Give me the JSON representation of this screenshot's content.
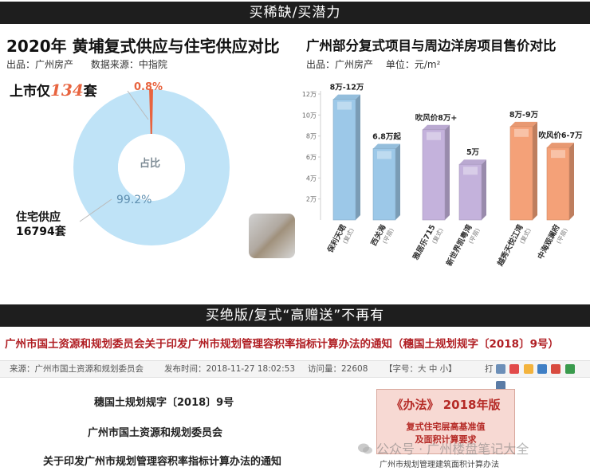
{
  "banners": {
    "top": "买稀缺/买潜力",
    "middle": "买绝版/复式“高赠送”不再有"
  },
  "left_panel": {
    "title": "2020年 黄埔复式供应与住宅供应对比",
    "source_out": "出品：广州房产",
    "source_data": "数据来源：中指院",
    "listed_prefix": "上市仅",
    "listed_count": "134",
    "listed_suffix": "套",
    "small_pct": "0.8%",
    "center_label": "占比",
    "big_pct": "99.2%",
    "residential_label": "住宅供应",
    "residential_count": "16794套",
    "colors": {
      "donut_main": "#bfe3f7",
      "donut_slice": "#e8643f",
      "accent": "#e8643f"
    }
  },
  "right_panel": {
    "title": "广州部分复式项目与周边洋房项目售价对比",
    "source_out": "出品：广州房产",
    "unit": "单位：元/m²"
  },
  "chart_data": {
    "type": "bar",
    "title": "广州部分复式项目与周边洋房项目售价对比",
    "ylabel": "",
    "ylim": [
      0,
      12
    ],
    "yticks": [
      "2万",
      "4万",
      "6万",
      "8万",
      "10万",
      "12万"
    ],
    "categories": [
      {
        "name": "保利天珺",
        "sub": "(复式)"
      },
      {
        "name": "西关海",
        "sub": "(平层)"
      },
      {
        "name": "雅居乐715",
        "sub": "(复式)"
      },
      {
        "name": "新世界凯粤湾",
        "sub": "(平层)"
      },
      {
        "name": "越秀天悦江湾",
        "sub": "(复式)"
      },
      {
        "name": "中海观澜府",
        "sub": "(平层)"
      }
    ],
    "values": [
      11.5,
      6.8,
      8.6,
      5.3,
      8.9,
      6.9
    ],
    "value_labels": [
      "8万-12万",
      "6.8万起",
      "吹风价8万+",
      "5万",
      "8万-9万",
      "吹风价6-7万"
    ],
    "colors": [
      "#9cc8e8",
      "#9cc8e8",
      "#c4b2dc",
      "#c4b2dc",
      "#f4a178",
      "#f4a178"
    ],
    "grid": false
  },
  "document": {
    "headline": "广州市国土资源和规划委员会关于印发广州市规划管理容积率指标计算办法的通知（穗国土规划规字〔2018〕9号）",
    "bar": {
      "source": "来源：广州市国土资源和规划委员会",
      "published": "发布时间：2018-11-27 18:02:53",
      "visits": "访问量：22608",
      "font_size": "【字号：大 中 小】",
      "print": "打"
    },
    "lines": [
      "穗国土规划规字〔2018〕9号",
      "广州市国土资源和规划委员会",
      "关于印发广州市规划管理容积率指标计算办法的通知"
    ],
    "law_box": {
      "title": "《办法》 2018年版",
      "line1": "复式住宅层高基准值",
      "line2": "及面积计算要求"
    },
    "law_footer": "广州市规划管理建筑面积计算办法"
  },
  "watermark": "公众号 · 广州楼盘笔记大全"
}
